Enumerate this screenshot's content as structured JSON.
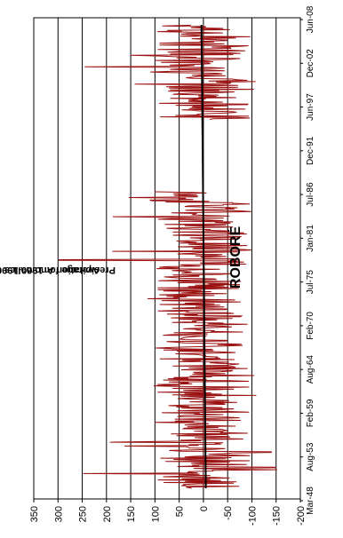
{
  "chart_data": {
    "type": "line",
    "title": "ROBORÉ",
    "ylabel_line1": "Precipitation Anomalies compared to",
    "ylabel_line2": "Average for 1960-1990 (millimeters)",
    "x_tick_labels": [
      "Mar-48",
      "Aug-53",
      "Feb-59",
      "Aug-64",
      "Feb-70",
      "Jul-75",
      "Jan-81",
      "Jul-86",
      "Dec-91",
      "Jun-97",
      "Dec-02",
      "Jun-08"
    ],
    "y_tick_labels": [
      "350",
      "300",
      "250",
      "200",
      "150",
      "100",
      "50",
      "0",
      "-50",
      "-100",
      "-150",
      "-200"
    ],
    "ylim": [
      -200,
      350
    ],
    "grid": true,
    "series": [
      {
        "style": "monthly anomalies",
        "color": "#9b1111",
        "segments": [
          {
            "start_year": 1948.2,
            "end_year": 1986.8
          },
          {
            "start_year": 1996.2,
            "end_year": 2008.5
          }
        ],
        "notable_values": [
          {
            "year": 1950.1,
            "value": 248
          },
          {
            "year": 1950.6,
            "value": -152
          },
          {
            "year": 1950.9,
            "value": -148
          },
          {
            "year": 1952.9,
            "value": -140
          },
          {
            "year": 1953.7,
            "value": 163
          },
          {
            "year": 1954.2,
            "value": 193
          },
          {
            "year": 1977.9,
            "value": 298
          },
          {
            "year": 1979.0,
            "value": 188
          },
          {
            "year": 1983.5,
            "value": 187
          },
          {
            "year": 1986.0,
            "value": 154
          },
          {
            "year": 2000.8,
            "value": 142
          },
          {
            "year": 2003.0,
            "value": 245
          },
          {
            "year": 2004.5,
            "value": 150
          },
          {
            "year": 2007.6,
            "value": 95
          }
        ]
      },
      {
        "style": "linear trend",
        "color": "#000000",
        "start": {
          "year": 1948.2,
          "value": -5
        },
        "end": {
          "year": 2008.5,
          "value": 4
        }
      }
    ]
  }
}
